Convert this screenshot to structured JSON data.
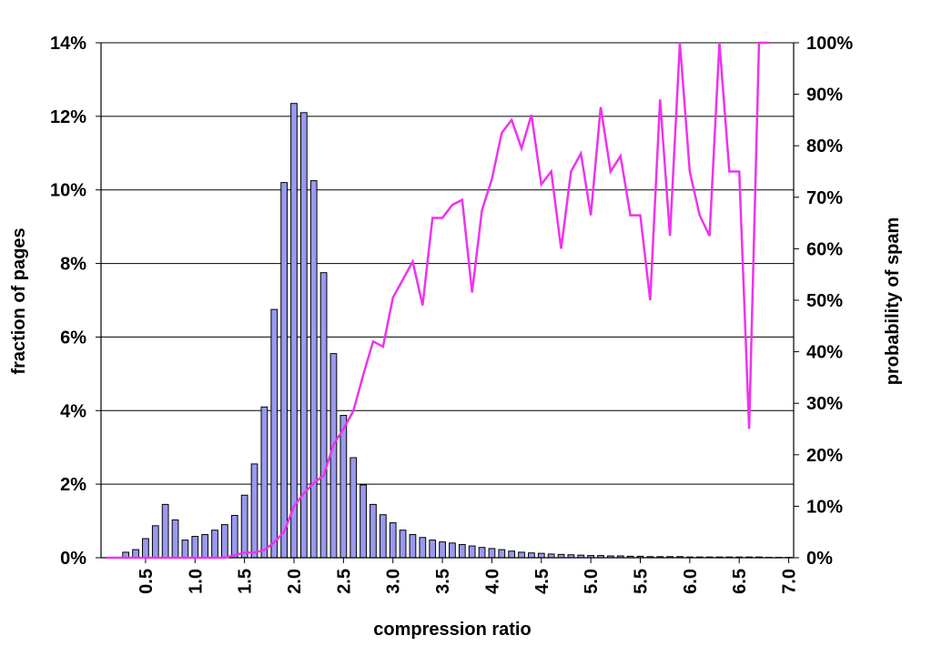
{
  "chart_data": {
    "type": "bar",
    "title": "",
    "xlabel": "compression ratio",
    "ylabel": "fraction of pages",
    "y2label": "probability of spam",
    "ylim": [
      0,
      14
    ],
    "y2lim": [
      0,
      100
    ],
    "y_ticks": [
      {
        "value": 0,
        "label": "0%"
      },
      {
        "value": 2,
        "label": "2%"
      },
      {
        "value": 4,
        "label": "4%"
      },
      {
        "value": 6,
        "label": "6%"
      },
      {
        "value": 8,
        "label": "8%"
      },
      {
        "value": 10,
        "label": "10%"
      },
      {
        "value": 12,
        "label": "12%"
      },
      {
        "value": 14,
        "label": "14%"
      }
    ],
    "y2_ticks": [
      {
        "value": 0,
        "label": "0%"
      },
      {
        "value": 10,
        "label": "10%"
      },
      {
        "value": 20,
        "label": "20%"
      },
      {
        "value": 30,
        "label": "30%"
      },
      {
        "value": 40,
        "label": "40%"
      },
      {
        "value": 50,
        "label": "50%"
      },
      {
        "value": 60,
        "label": "60%"
      },
      {
        "value": 70,
        "label": "70%"
      },
      {
        "value": 80,
        "label": "80%"
      },
      {
        "value": 90,
        "label": "90%"
      },
      {
        "value": 100,
        "label": "100%"
      }
    ],
    "x_ticks": [
      {
        "value": 0.5,
        "label": "0.5"
      },
      {
        "value": 1.0,
        "label": "1.0"
      },
      {
        "value": 1.5,
        "label": "1.5"
      },
      {
        "value": 2.0,
        "label": "2.0"
      },
      {
        "value": 2.5,
        "label": "2.5"
      },
      {
        "value": 3.0,
        "label": "3.0"
      },
      {
        "value": 3.5,
        "label": "3.5"
      },
      {
        "value": 4.0,
        "label": "4.0"
      },
      {
        "value": 4.5,
        "label": "4.5"
      },
      {
        "value": 5.0,
        "label": "5.0"
      },
      {
        "value": 5.5,
        "label": "5.5"
      },
      {
        "value": 6.0,
        "label": "6.0"
      },
      {
        "value": 6.5,
        "label": "6.5"
      },
      {
        "value": 7.0,
        "label": "7.0"
      }
    ],
    "x": [
      0.1,
      0.2,
      0.3,
      0.4,
      0.5,
      0.6,
      0.7,
      0.8,
      0.9,
      1.0,
      1.1,
      1.2,
      1.3,
      1.4,
      1.5,
      1.6,
      1.7,
      1.8,
      1.9,
      2.0,
      2.1,
      2.2,
      2.3,
      2.4,
      2.5,
      2.6,
      2.7,
      2.8,
      2.9,
      3.0,
      3.1,
      3.2,
      3.3,
      3.4,
      3.5,
      3.6,
      3.7,
      3.8,
      3.9,
      4.0,
      4.1,
      4.2,
      4.3,
      4.4,
      4.5,
      4.6,
      4.7,
      4.8,
      4.9,
      5.0,
      5.1,
      5.2,
      5.3,
      5.4,
      5.5,
      5.6,
      5.7,
      5.8,
      5.9,
      6.0,
      6.1,
      6.2,
      6.3,
      6.4,
      6.5,
      6.6,
      6.7,
      6.8,
      6.9,
      7.0
    ],
    "series": [
      {
        "name": "fraction of pages",
        "type": "bar",
        "axis": "left",
        "color": "#9999ee",
        "values": [
          0.0,
          0.0,
          0.15,
          0.22,
          0.52,
          0.87,
          1.45,
          1.03,
          0.48,
          0.58,
          0.63,
          0.75,
          0.9,
          1.15,
          1.7,
          2.55,
          4.1,
          6.75,
          10.2,
          12.35,
          12.1,
          10.25,
          7.75,
          5.55,
          3.87,
          2.72,
          1.98,
          1.45,
          1.17,
          0.95,
          0.75,
          0.63,
          0.55,
          0.48,
          0.43,
          0.4,
          0.36,
          0.32,
          0.28,
          0.25,
          0.22,
          0.18,
          0.15,
          0.13,
          0.12,
          0.1,
          0.09,
          0.08,
          0.07,
          0.06,
          0.06,
          0.05,
          0.05,
          0.04,
          0.04,
          0.03,
          0.03,
          0.03,
          0.03,
          0.02,
          0.02,
          0.02,
          0.02,
          0.02,
          0.02,
          0.02,
          0.02,
          0.01,
          0.01,
          0.01
        ]
      },
      {
        "name": "probability of spam",
        "type": "line",
        "axis": "right",
        "color": "#ee33ee",
        "values": [
          0,
          0,
          0,
          0,
          0,
          0,
          0,
          0,
          0,
          0,
          0,
          0,
          0,
          0.5,
          1,
          1,
          1.5,
          3,
          5,
          10,
          12.5,
          14.5,
          16,
          22,
          25,
          28.5,
          35.5,
          42,
          41,
          50.5,
          54,
          57.5,
          49,
          66,
          66,
          68.5,
          69.5,
          51.5,
          67.5,
          73.5,
          82.5,
          85,
          79.5,
          86,
          72.5,
          75,
          60,
          75,
          78.5,
          66.5,
          87.5,
          75,
          78,
          66.5,
          66.5,
          50,
          89,
          62.5,
          100,
          75,
          66.5,
          62.5,
          100,
          75,
          75,
          25,
          100,
          100,
          null,
          null
        ]
      }
    ]
  }
}
